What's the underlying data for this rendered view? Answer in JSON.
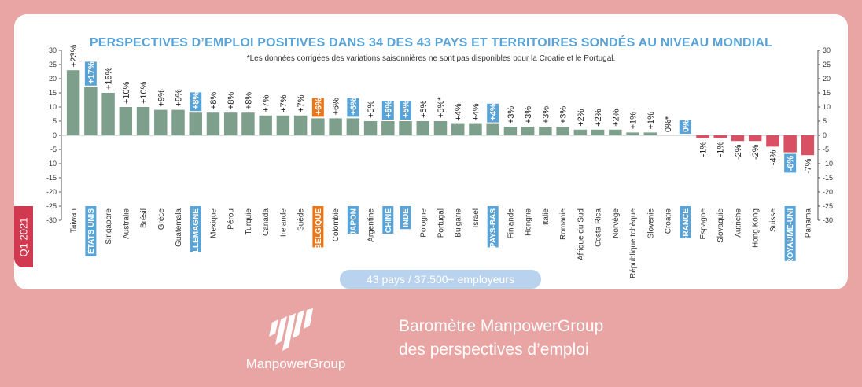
{
  "period_tab": "Q1 2021",
  "header": {
    "title": "PERSPECTIVES D’EMPLOI POSITIVES DANS 34 DES 43 PAYS ET TERRITOIRES SONDÉS AU NIVEAU MONDIAL",
    "footnote": "*Les données corrigées des variations saisonnières ne sont pas disponibles pour la Croatie et le Portugal."
  },
  "summary_pill": "43 pays / 37.500+ employeurs",
  "footer": {
    "brand": "ManpowerGroup",
    "tagline_line1": "Baromètre ManpowerGroup",
    "tagline_line2": "des perspectives d’emploi"
  },
  "colors": {
    "positive": "#7d9f8c",
    "negative": "#d94f64",
    "highlight": "#5aa3d6",
    "belgium": "#e8761c",
    "axis": "#555555"
  },
  "chart_data": {
    "type": "bar",
    "title": "PERSPECTIVES D’EMPLOI POSITIVES DANS 34 DES 43 PAYS ET TERRITOIRES SONDÉS AU NIVEAU MONDIAL",
    "ylim": [
      -30,
      30
    ],
    "yticks": [
      30,
      25,
      20,
      15,
      10,
      5,
      0,
      -5,
      -10,
      -15,
      -20,
      -25,
      -30
    ],
    "categories": [
      "Taiwan",
      "ÉTATS UNIS",
      "Singapore",
      "Australie",
      "Brésil",
      "Grèce",
      "Guatemala",
      "ALLEMAGNE",
      "Mexique",
      "Pérou",
      "Turquie",
      "Canada",
      "Irelande",
      "Suède",
      "BELGIQUE",
      "Colombie",
      "JAPON",
      "Argentine",
      "CHINE",
      "INDE",
      "Pologne",
      "Portugal",
      "Bulgarie",
      "Israël",
      "PAYS-BAS",
      "Finlande",
      "Hongrie",
      "Italie",
      "Romanie",
      "Afrique du Sud",
      "Costa Rica",
      "Norvège",
      "République tchèque",
      "Slovenie",
      "Croatie",
      "FRANCE",
      "Espagne",
      "Slovaquie",
      "Autriche",
      "Hong Kong",
      "Suisse",
      "ROYAUME-UNI",
      "Panama"
    ],
    "values": [
      23,
      17,
      15,
      10,
      10,
      9,
      9,
      8,
      8,
      8,
      8,
      7,
      7,
      7,
      6,
      6,
      6,
      5,
      5,
      5,
      5,
      5,
      4,
      4,
      4,
      3,
      3,
      3,
      3,
      2,
      2,
      2,
      1,
      1,
      0,
      0,
      -1,
      -1,
      -2,
      -2,
      -4,
      -6,
      -7
    ],
    "value_labels": [
      "+23%",
      "+17%",
      "+15%",
      "+10%",
      "+10%",
      "+9%",
      "+9%",
      "+8%",
      "+8%",
      "+8%",
      "+8%",
      "+7%",
      "+7%",
      "+7%",
      "+6%",
      "+6%",
      "+6%",
      "+5%",
      "+5%",
      "+5%",
      "+5%",
      "+5%*",
      "+4%",
      "+4%",
      "+4%",
      "+3%",
      "+3%",
      "+3%",
      "+3%",
      "+2%",
      "+2%",
      "+2%",
      "+1%",
      "+1%",
      "0%*",
      "0%",
      "-1%",
      "-1%",
      "-2%",
      "-2%",
      "-4%",
      "-6%",
      "-7%"
    ],
    "highlighted": [
      "ÉTATS UNIS",
      "ALLEMAGNE",
      "JAPON",
      "CHINE",
      "INDE",
      "PAYS-BAS",
      "FRANCE",
      "ROYAUME-UNI"
    ],
    "belgium": [
      "BELGIQUE"
    ],
    "grid": false
  }
}
